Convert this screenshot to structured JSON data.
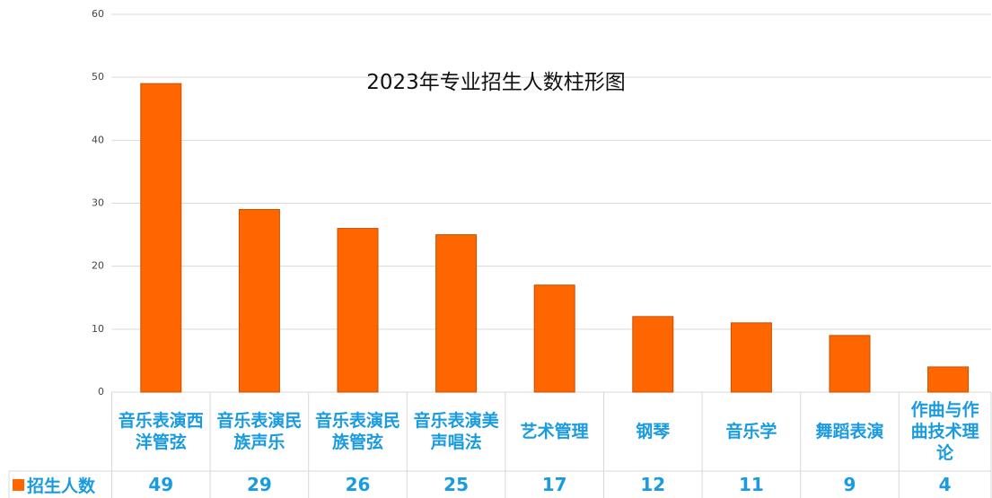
{
  "chart_data": {
    "type": "bar",
    "title": "2023年专业招生人数柱形图",
    "categories": [
      "音乐表演西洋管弦",
      "音乐表演民族声乐",
      "音乐表演民族管弦",
      "音乐表演美声唱法",
      "艺术管理",
      "钢琴",
      "音乐学",
      "舞蹈表演",
      "作曲与作曲技术理论"
    ],
    "series": [
      {
        "name": "招生人数",
        "color": "#ff6600",
        "values": [
          49,
          29,
          26,
          25,
          17,
          12,
          11,
          9,
          4
        ]
      }
    ],
    "ylim": [
      0,
      60
    ],
    "yticks": [
      0,
      10,
      20,
      30,
      40,
      50,
      60
    ],
    "grid": true
  }
}
